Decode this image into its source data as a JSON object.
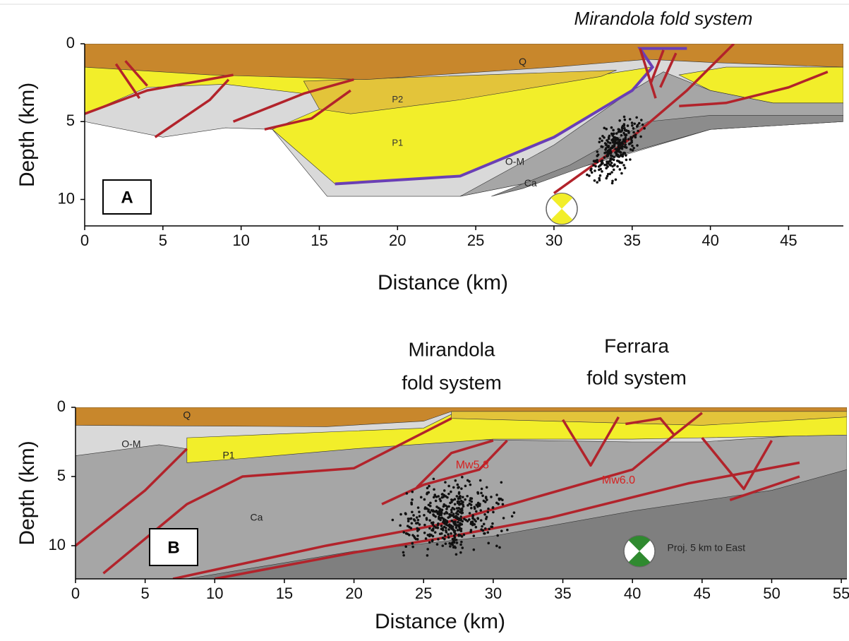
{
  "chart_data": [
    {
      "type": "cross-section",
      "title": "A",
      "x_label": "Distance (km)",
      "y_label": "Depth (km)",
      "xlim": [
        0,
        48.5
      ],
      "xticks": [
        0,
        5,
        10,
        15,
        20,
        25,
        30,
        35,
        40,
        45
      ],
      "ylim": [
        0,
        11.7
      ],
      "yticks": [
        0,
        5,
        10
      ],
      "annotations": [
        "Mirandola fold system",
        "Q",
        "P2",
        "P1",
        "O-M",
        "Ca"
      ]
    },
    {
      "type": "cross-section",
      "title": "B",
      "x_label": "Distance (km)",
      "y_label": "Depth (km)",
      "xlim": [
        0,
        55.4
      ],
      "xticks": [
        0,
        5,
        10,
        15,
        20,
        25,
        30,
        35,
        40,
        45,
        50,
        55
      ],
      "ylim": [
        0,
        12.4
      ],
      "yticks": [
        0,
        5,
        10
      ],
      "annotations": [
        "Mirandola",
        "fold system",
        "Ferrara",
        "fold system",
        "Q",
        "O-M",
        "P1",
        "Ca",
        "Mw5.8",
        "Mw6.0",
        "Proj. 5 km to East"
      ]
    }
  ]
}
